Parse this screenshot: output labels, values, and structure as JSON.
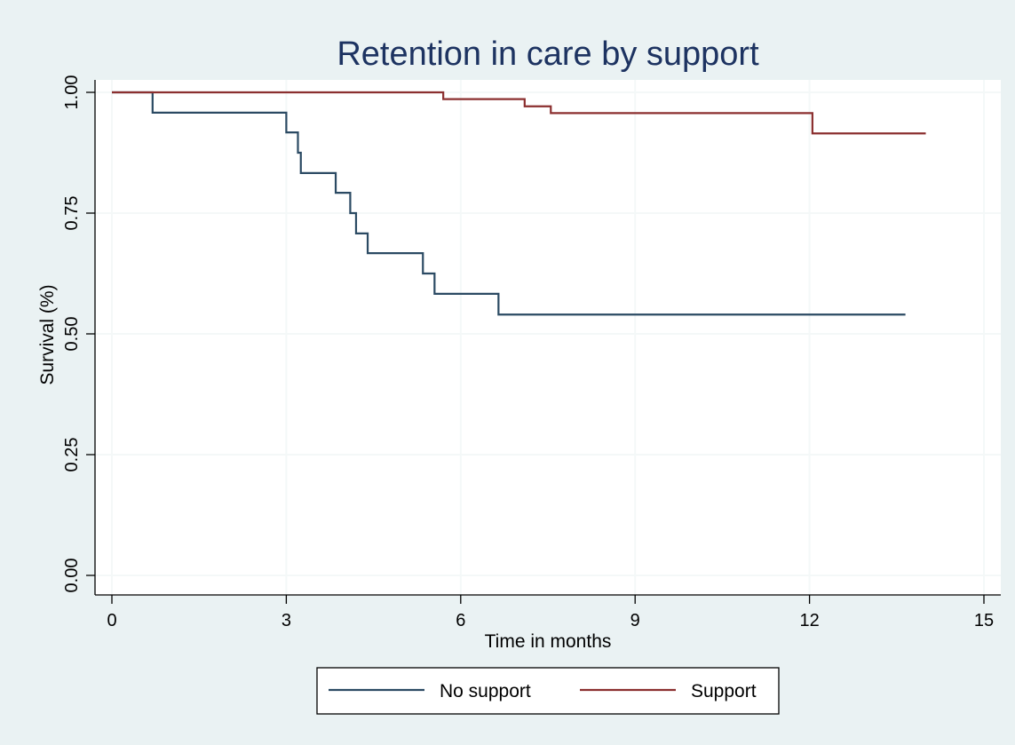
{
  "chart_data": {
    "type": "line",
    "title": "Retention in care by support",
    "xlabel": "Time in months",
    "ylabel": "Survival (%)",
    "xlim": [
      0,
      15
    ],
    "ylim": [
      0,
      1
    ],
    "x_ticks": [
      "0",
      "3",
      "6",
      "9",
      "12",
      "15"
    ],
    "y_ticks": [
      "0.00",
      "0.25",
      "0.50",
      "0.75",
      "1.00"
    ],
    "grid": true,
    "legend_position": "bottom",
    "series": [
      {
        "name": "No support",
        "color": "#2b4a63",
        "step": true,
        "points": [
          [
            0,
            1.0
          ],
          [
            0.7,
            0.958
          ],
          [
            3.0,
            0.917
          ],
          [
            3.2,
            0.875
          ],
          [
            3.25,
            0.833
          ],
          [
            3.85,
            0.792
          ],
          [
            4.1,
            0.75
          ],
          [
            4.2,
            0.708
          ],
          [
            4.4,
            0.667
          ],
          [
            5.35,
            0.625
          ],
          [
            5.55,
            0.583
          ],
          [
            6.65,
            0.54
          ],
          [
            13.65,
            0.54
          ]
        ]
      },
      {
        "name": "Support",
        "color": "#8b2f2f",
        "step": true,
        "points": [
          [
            0,
            1.0
          ],
          [
            5.7,
            0.986
          ],
          [
            7.1,
            0.971
          ],
          [
            7.55,
            0.957
          ],
          [
            12.05,
            0.915
          ],
          [
            14.0,
            0.915
          ]
        ]
      }
    ]
  }
}
